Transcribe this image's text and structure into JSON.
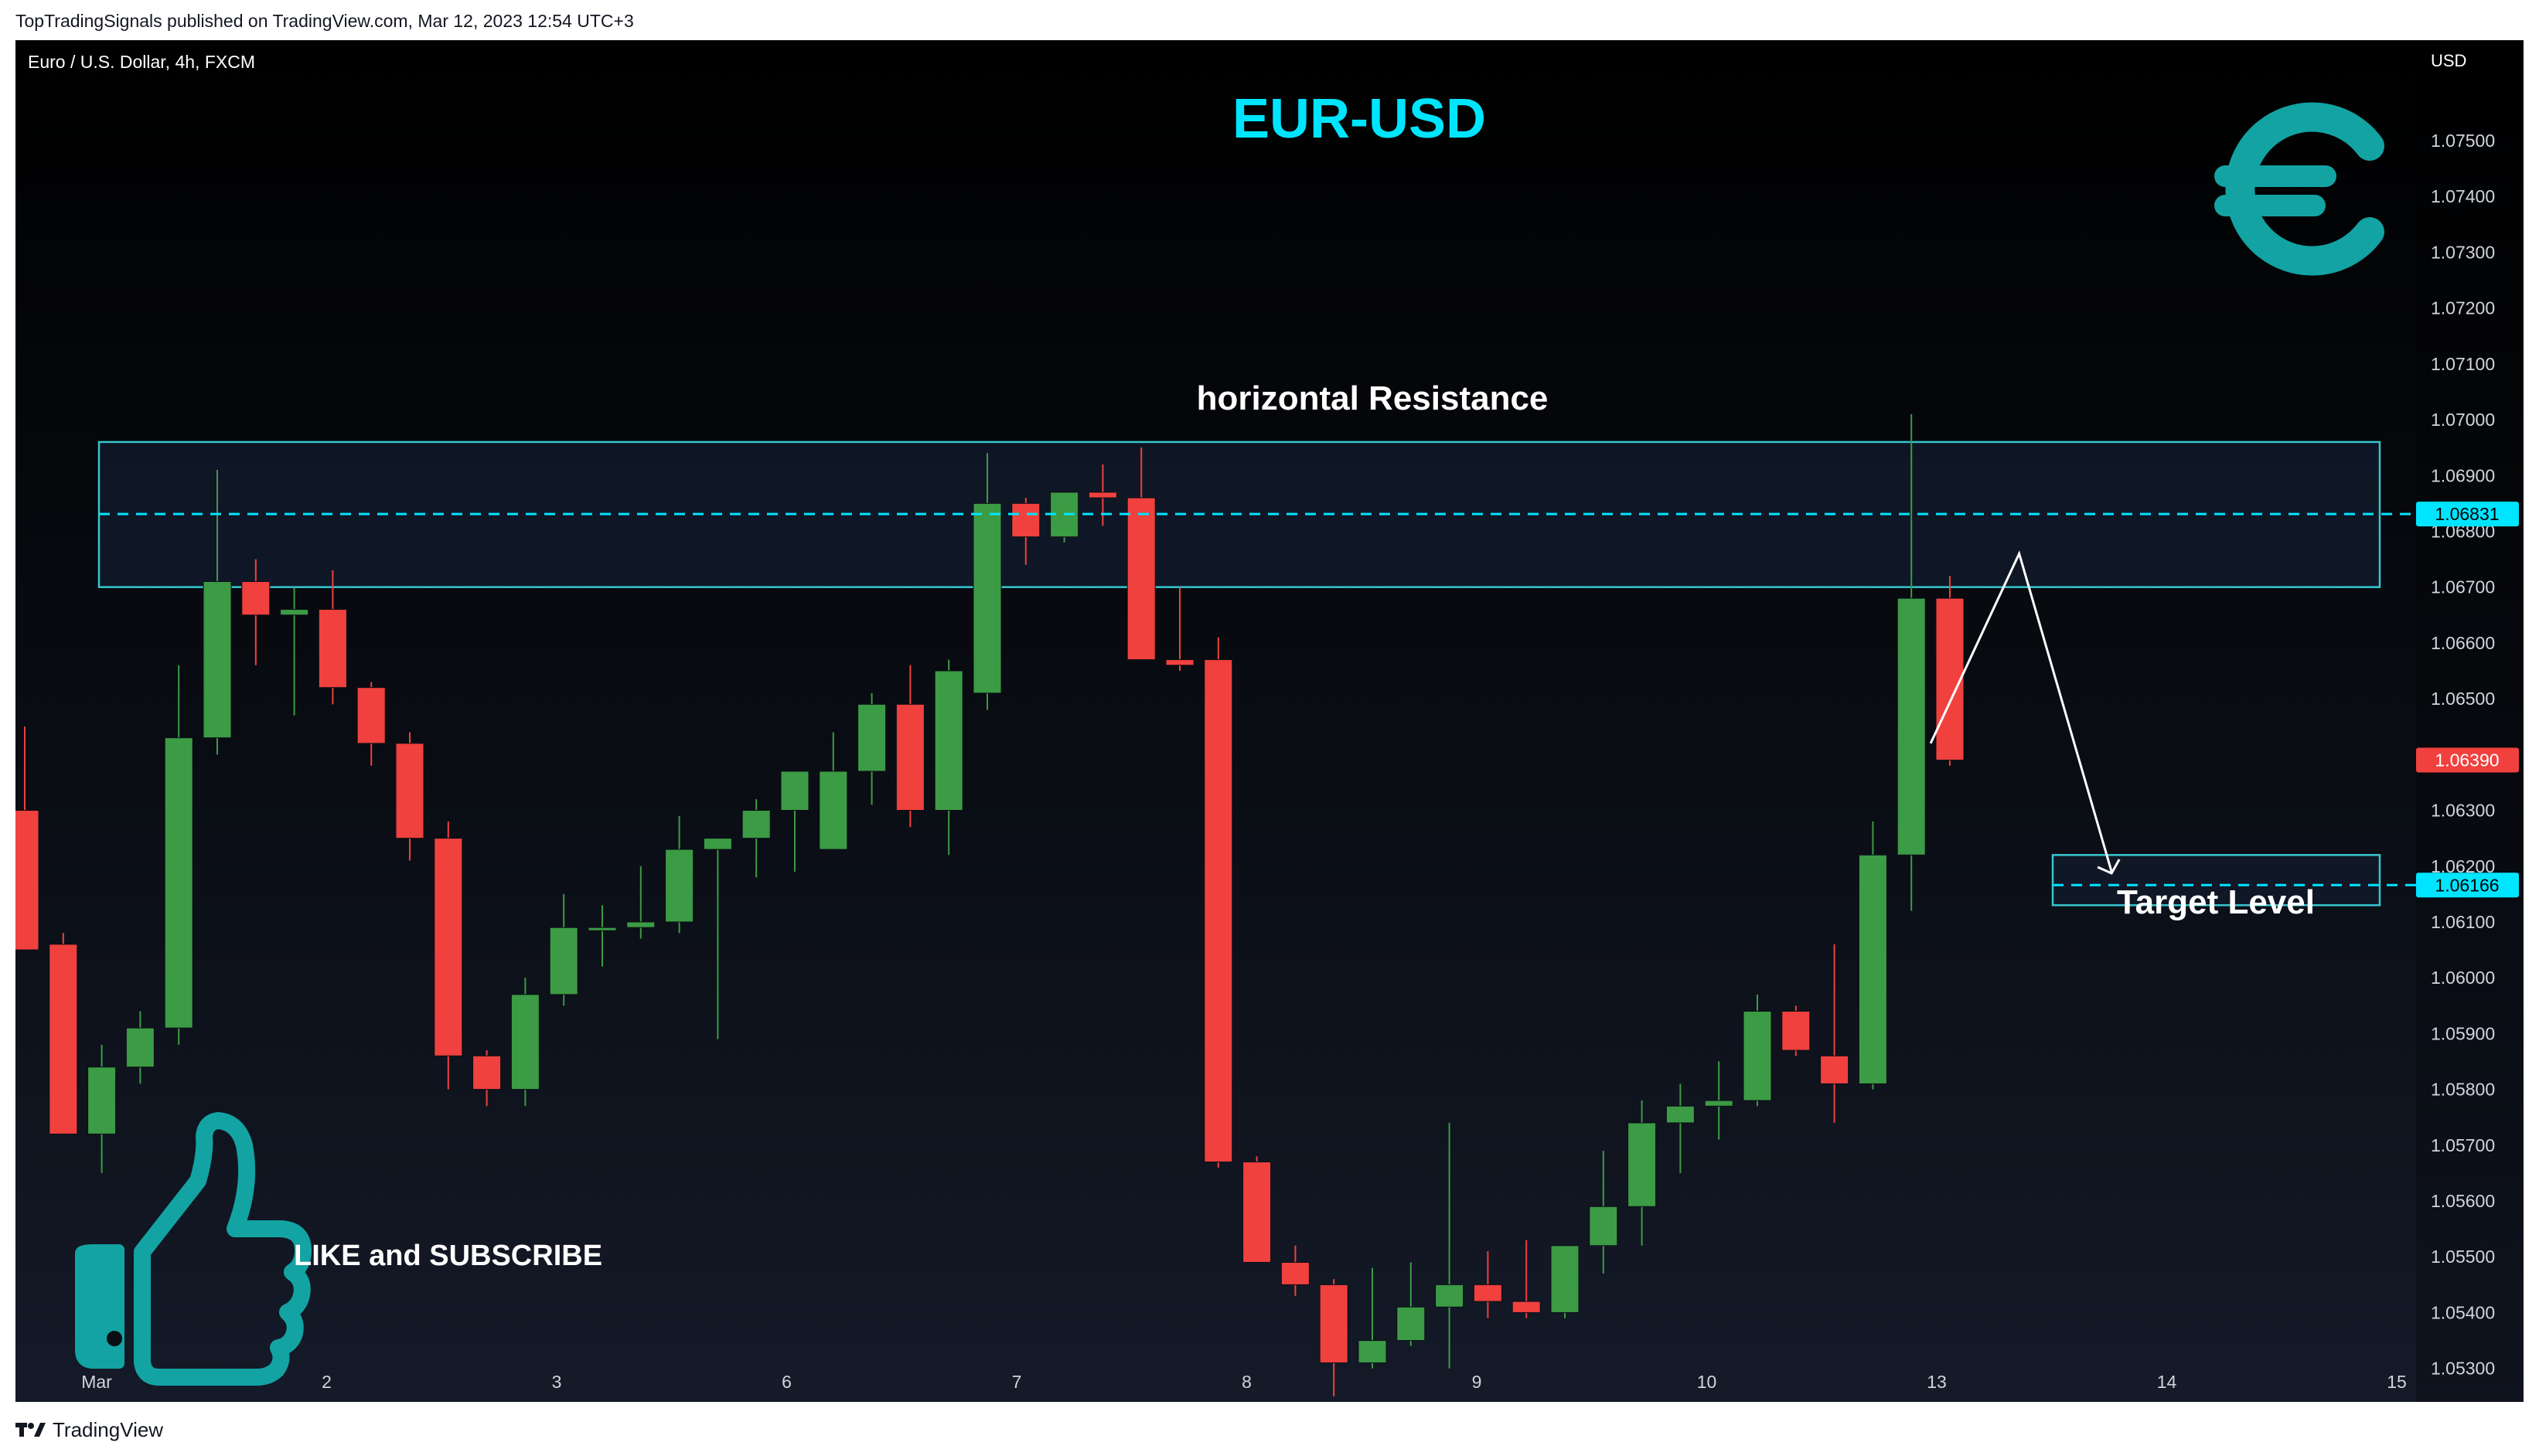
{
  "publish_line": "TopTradingSignals published on TradingView.com, Mar 12, 2023 12:54 UTC+3",
  "footer": {
    "brand": "TradingView"
  },
  "colors": {
    "up": "#3c9b45",
    "down": "#f0413e",
    "accent": "#00e5ff",
    "euro": "#13a3a3",
    "thumb": "#13a3a3",
    "box_stroke": "#36c6cf"
  },
  "chart_data": {
    "type": "candlestick",
    "symbol_line": "Euro / U.S. Dollar, 4h, FXCM",
    "title": "EUR-USD",
    "currency": "USD",
    "ylim": [
      1.0524,
      1.0768
    ],
    "y_ticks": [
      "1.07500",
      "1.07400",
      "1.07300",
      "1.07200",
      "1.07100",
      "1.07000",
      "1.06900",
      "1.06800",
      "1.06700",
      "1.06600",
      "1.06500",
      "1.06300",
      "1.06200",
      "1.06100",
      "1.06000",
      "1.05900",
      "1.05800",
      "1.05700",
      "1.05600",
      "1.05500",
      "1.05400",
      "1.05300"
    ],
    "y_tick_values": [
      1.075,
      1.074,
      1.073,
      1.072,
      1.071,
      1.07,
      1.069,
      1.068,
      1.067,
      1.066,
      1.065,
      1.063,
      1.062,
      1.061,
      1.06,
      1.059,
      1.058,
      1.057,
      1.056,
      1.055,
      1.054,
      1.053
    ],
    "x_ticks": [
      {
        "label": "Mar",
        "day": 1
      },
      {
        "label": "2",
        "day": 2
      },
      {
        "label": "3",
        "day": 3
      },
      {
        "label": "6",
        "day": 4
      },
      {
        "label": "7",
        "day": 5
      },
      {
        "label": "8",
        "day": 6
      },
      {
        "label": "9",
        "day": 7
      },
      {
        "label": "10",
        "day": 8
      },
      {
        "label": "13",
        "day": 9
      },
      {
        "label": "14",
        "day": 10
      },
      {
        "label": "15",
        "day": 11
      }
    ],
    "candles": [
      {
        "o": 1.063,
        "h": 1.0645,
        "l": 1.0605,
        "c": 1.0605
      },
      {
        "o": 1.0606,
        "h": 1.0608,
        "l": 1.0572,
        "c": 1.0572
      },
      {
        "o": 1.0572,
        "h": 1.0588,
        "l": 1.0565,
        "c": 1.0584
      },
      {
        "o": 1.0584,
        "h": 1.0594,
        "l": 1.0581,
        "c": 1.0591
      },
      {
        "o": 1.0591,
        "h": 1.0656,
        "l": 1.0588,
        "c": 1.0643
      },
      {
        "o": 1.0643,
        "h": 1.0691,
        "l": 1.064,
        "c": 1.0671
      },
      {
        "o": 1.0671,
        "h": 1.0675,
        "l": 1.0656,
        "c": 1.0665
      },
      {
        "o": 1.0665,
        "h": 1.067,
        "l": 1.0647,
        "c": 1.0666
      },
      {
        "o": 1.0666,
        "h": 1.0673,
        "l": 1.0649,
        "c": 1.0652
      },
      {
        "o": 1.0652,
        "h": 1.0653,
        "l": 1.0638,
        "c": 1.0642
      },
      {
        "o": 1.0642,
        "h": 1.0644,
        "l": 1.0621,
        "c": 1.0625
      },
      {
        "o": 1.0625,
        "h": 1.0628,
        "l": 1.058,
        "c": 1.0586
      },
      {
        "o": 1.0586,
        "h": 1.0587,
        "l": 1.0577,
        "c": 1.058
      },
      {
        "o": 1.058,
        "h": 1.06,
        "l": 1.0577,
        "c": 1.0597
      },
      {
        "o": 1.0597,
        "h": 1.0615,
        "l": 1.0595,
        "c": 1.0609
      },
      {
        "o": 1.0609,
        "h": 1.0613,
        "l": 1.0602,
        "c": 1.0609
      },
      {
        "o": 1.0609,
        "h": 1.062,
        "l": 1.0607,
        "c": 1.061
      },
      {
        "o": 1.061,
        "h": 1.0629,
        "l": 1.0608,
        "c": 1.0623
      },
      {
        "o": 1.0623,
        "h": 1.0625,
        "l": 1.0589,
        "c": 1.0625
      },
      {
        "o": 1.0625,
        "h": 1.0632,
        "l": 1.0618,
        "c": 1.063
      },
      {
        "o": 1.063,
        "h": 1.0636,
        "l": 1.0619,
        "c": 1.0637
      },
      {
        "o": 1.0623,
        "h": 1.0644,
        "l": 1.0623,
        "c": 1.0637
      },
      {
        "o": 1.0637,
        "h": 1.0651,
        "l": 1.0631,
        "c": 1.0649
      },
      {
        "o": 1.0649,
        "h": 1.0656,
        "l": 1.0627,
        "c": 1.063
      },
      {
        "o": 1.063,
        "h": 1.0657,
        "l": 1.0622,
        "c": 1.0655
      },
      {
        "o": 1.0651,
        "h": 1.0694,
        "l": 1.0648,
        "c": 1.0685
      },
      {
        "o": 1.0685,
        "h": 1.0686,
        "l": 1.0674,
        "c": 1.0679
      },
      {
        "o": 1.0679,
        "h": 1.0687,
        "l": 1.0678,
        "c": 1.0687
      },
      {
        "o": 1.0687,
        "h": 1.0692,
        "l": 1.0681,
        "c": 1.0686
      },
      {
        "o": 1.0686,
        "h": 1.0695,
        "l": 1.0657,
        "c": 1.0657
      },
      {
        "o": 1.0657,
        "h": 1.067,
        "l": 1.0655,
        "c": 1.0656
      },
      {
        "o": 1.0657,
        "h": 1.0661,
        "l": 1.0566,
        "c": 1.0567
      },
      {
        "o": 1.0567,
        "h": 1.0568,
        "l": 1.0549,
        "c": 1.0549
      },
      {
        "o": 1.0549,
        "h": 1.0552,
        "l": 1.0543,
        "c": 1.0545
      },
      {
        "o": 1.0545,
        "h": 1.0546,
        "l": 1.0525,
        "c": 1.0531
      },
      {
        "o": 1.0531,
        "h": 1.0548,
        "l": 1.053,
        "c": 1.0535
      },
      {
        "o": 1.0535,
        "h": 1.0549,
        "l": 1.0534,
        "c": 1.0541
      },
      {
        "o": 1.0541,
        "h": 1.0574,
        "l": 1.053,
        "c": 1.0545
      },
      {
        "o": 1.0545,
        "h": 1.0551,
        "l": 1.0539,
        "c": 1.0542
      },
      {
        "o": 1.0542,
        "h": 1.0553,
        "l": 1.0539,
        "c": 1.054
      },
      {
        "o": 1.054,
        "h": 1.0552,
        "l": 1.0539,
        "c": 1.0552
      },
      {
        "o": 1.0552,
        "h": 1.0569,
        "l": 1.0547,
        "c": 1.0559
      },
      {
        "o": 1.0559,
        "h": 1.0578,
        "l": 1.0552,
        "c": 1.0574
      },
      {
        "o": 1.0574,
        "h": 1.0581,
        "l": 1.0565,
        "c": 1.0577
      },
      {
        "o": 1.0577,
        "h": 1.0585,
        "l": 1.0571,
        "c": 1.0578
      },
      {
        "o": 1.0578,
        "h": 1.0597,
        "l": 1.0577,
        "c": 1.0594
      },
      {
        "o": 1.0594,
        "h": 1.0595,
        "l": 1.0586,
        "c": 1.0587
      },
      {
        "o": 1.0586,
        "h": 1.0606,
        "l": 1.0574,
        "c": 1.0581
      },
      {
        "o": 1.0581,
        "h": 1.0628,
        "l": 1.058,
        "c": 1.0622
      },
      {
        "o": 1.0622,
        "h": 1.0701,
        "l": 1.0612,
        "c": 1.0668
      },
      {
        "o": 1.0668,
        "h": 1.0672,
        "l": 1.0638,
        "c": 1.0639
      }
    ],
    "price_labels": [
      {
        "value": 1.06831,
        "text": "1.06831",
        "style": "accent"
      },
      {
        "value": 1.0639,
        "text": "1.06390",
        "style": "down"
      },
      {
        "value": 1.06166,
        "text": "1.06166",
        "style": "accent"
      }
    ],
    "resistance_zone": {
      "label": "horizontal Resistance",
      "high": 1.0696,
      "low": 1.067,
      "level": 1.06831,
      "from_bar": 0,
      "to_bar": 59.6
    },
    "target_zone": {
      "label": "Target Level",
      "high": 1.0622,
      "low": 1.0613,
      "level": 1.06166,
      "from_bar": 52.6,
      "to_bar": 59.6
    },
    "projection_path": [
      {
        "bar": 49.5,
        "price": 1.0642
      },
      {
        "bar": 51.8,
        "price": 1.0676
      },
      {
        "bar": 54.2,
        "price": 1.0619
      }
    ],
    "cta_text": "LIKE and SUBSCRIBE"
  }
}
